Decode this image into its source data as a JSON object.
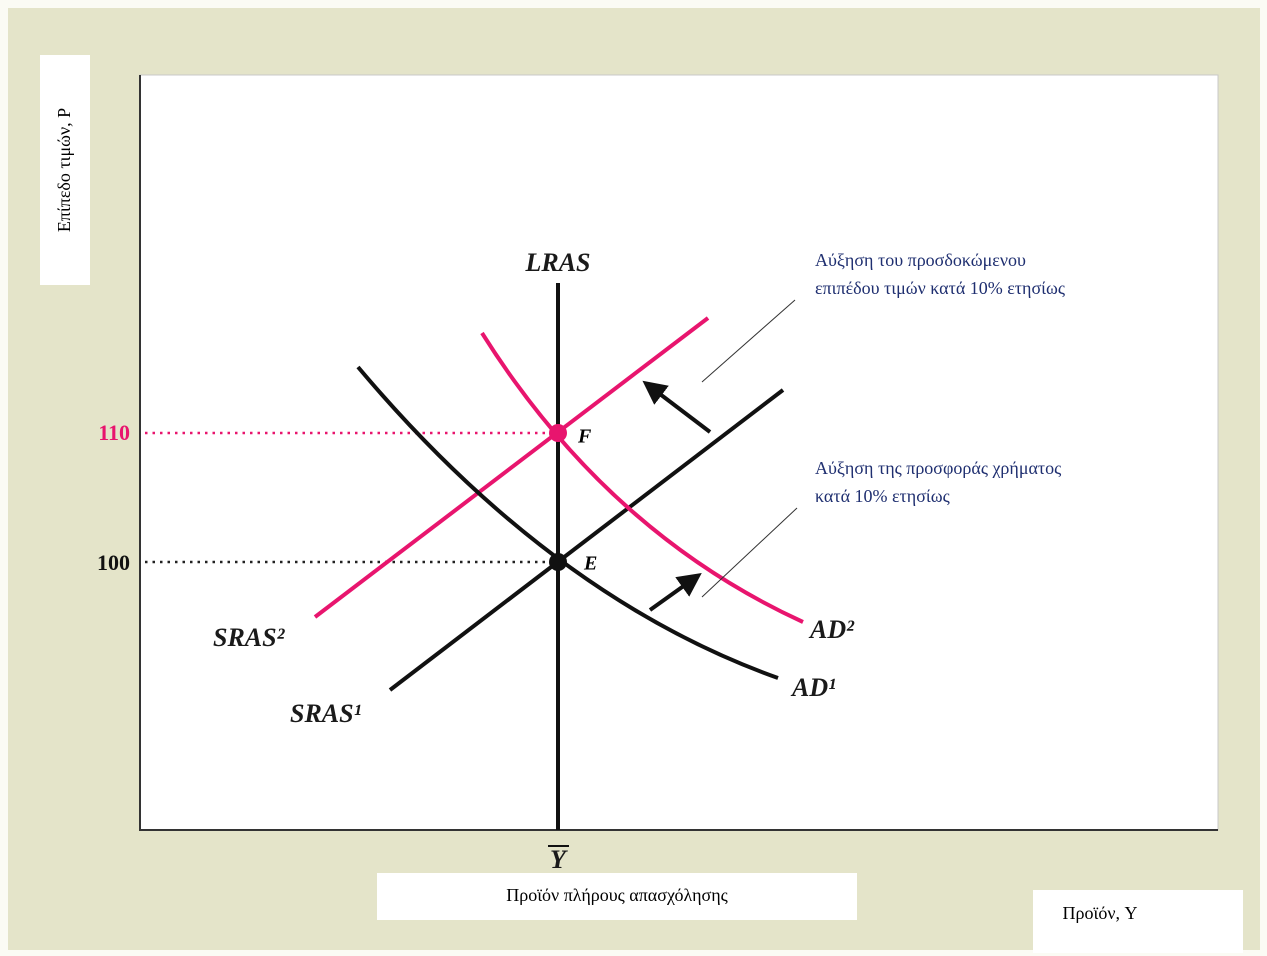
{
  "y_axis_label": "Επίπεδο τιμών, P",
  "x_axis_label": "Προϊόν, Y",
  "full_employment_label": "Προϊόν πλήρους απασχόλησης",
  "full_employment_symbol": "Y",
  "price_levels": [
    "110",
    "100"
  ],
  "curves": {
    "lras": "LRAS",
    "sras1": "SRAS¹",
    "sras2": "SRAS²",
    "ad1": "AD¹",
    "ad2": "AD²"
  },
  "points": {
    "e": "E",
    "f": "F"
  },
  "annotations": {
    "expected_price": [
      "Αύξηση του προσδοκώμενου",
      "επιπέδου τιμών κατά 10% ετησίως"
    ],
    "money_supply": [
      "Αύξηση της προσφοράς χρήματος",
      "κατά 10% ετησίως"
    ]
  }
}
